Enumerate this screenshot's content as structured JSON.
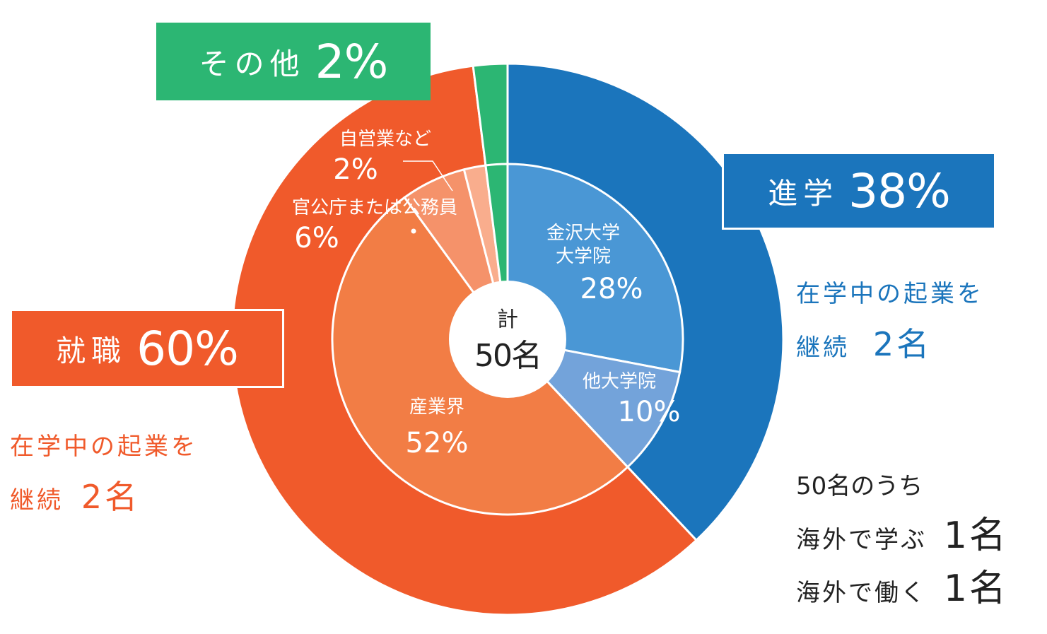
{
  "colors": {
    "shingaku_outer": "#1b75bc",
    "daigakuin": "#4a97d5",
    "ta_daigakuin": "#73a3da",
    "shushoku_outer": "#f05a2b",
    "sangyokai": "#f27d45",
    "kankocho": "#f5926a",
    "jieigyo": "#f9ad8d",
    "sonota": "#2cb673",
    "dark_text": "#222222"
  },
  "chart_data": {
    "type": "pie",
    "center_label": {
      "line1": "計",
      "line2": "50名"
    },
    "outer_ring": [
      {
        "label": "進学",
        "value": 38,
        "color": "#1b75bc",
        "display": "38%"
      },
      {
        "label": "就職",
        "value": 60,
        "color": "#f05a2b",
        "display": "60%"
      },
      {
        "label": "その他",
        "value": 2,
        "color": "#2cb673",
        "display": "2%"
      }
    ],
    "inner_ring": [
      {
        "label": "金沢大学大学院",
        "label_lines": [
          "金沢大学",
          "大学院"
        ],
        "value": 28,
        "display": "28%",
        "color": "#4a97d5"
      },
      {
        "label": "他大学院",
        "label_lines": [
          "他大学院"
        ],
        "value": 10,
        "display": "10%",
        "color": "#73a3da"
      },
      {
        "label": "産業界",
        "label_lines": [
          "産業界"
        ],
        "value": 52,
        "display": "52%",
        "color": "#f27d45"
      },
      {
        "label": "官公庁または公務員",
        "label_lines": [
          "官公庁または公務員"
        ],
        "value": 6,
        "display": "6%",
        "color": "#f5926a"
      },
      {
        "label": "自営業など",
        "label_lines": [
          "自営業など"
        ],
        "value": 2,
        "display": "2%",
        "color": "#f9ad8d"
      },
      {
        "label": "その他",
        "label_lines": [],
        "value": 2,
        "display": "",
        "color": "#2cb673"
      }
    ]
  },
  "boxes": {
    "sonota": {
      "label": "その他",
      "pct": "2%"
    },
    "shingaku": {
      "label": "進学",
      "pct": "38%"
    },
    "shushoku": {
      "label": "就職",
      "pct": "60%"
    }
  },
  "notes": {
    "shingaku_kigyo": {
      "line1": "在学中の起業を",
      "line2_prefix": "継続",
      "line2_num": "2名"
    },
    "shushoku_kigyo": {
      "line1": "在学中の起業を",
      "line2_prefix": "継続",
      "line2_num": "2名"
    },
    "kaigai": {
      "line1": "50名のうち",
      "line2_prefix": "海外で学ぶ",
      "line2_num": "1名",
      "line3_prefix": "海外で働く",
      "line3_num": "1名"
    }
  }
}
